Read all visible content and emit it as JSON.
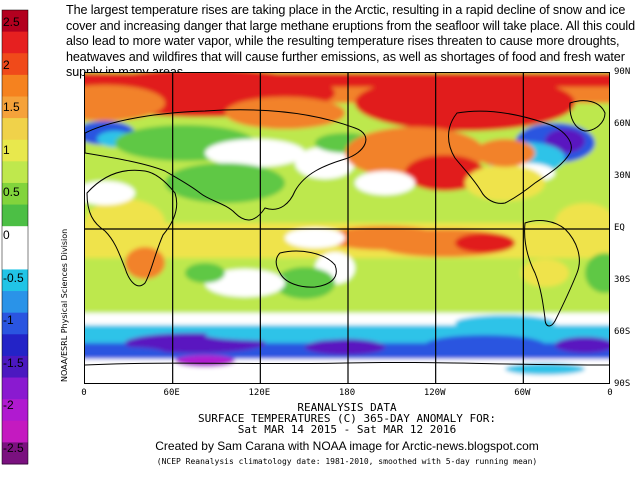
{
  "header": {
    "text": "The largest temperature rises are taking place in the Arctic, resulting in a rapid decline of snow and ice cover and increasing danger that large methane eruptions from the seafloor will take place. All this could also lead to more water vapor, while the resulting temperature rises threaten to cause more droughts, heatwaves and wildfires that will cause further emissions, as well as shortages of food and fresh water supply in many areas."
  },
  "colorbar": {
    "labels": [
      "2.5",
      "2",
      "1.5",
      "1",
      "0.5",
      "0",
      "-0.5",
      "-1",
      "-1.5",
      "-2",
      "-2.5"
    ],
    "colors": [
      "#b3001f",
      "#e62020",
      "#f04a1a",
      "#f5821f",
      "#f5a23a",
      "#f0d24a",
      "#e8e84d",
      "#bfe84d",
      "#82d43c",
      "#4cbf45",
      "#ffffff",
      "#ffffff",
      "#21c4e6",
      "#2a93e8",
      "#2a55e0",
      "#2323c7",
      "#4b18c0",
      "#8a1ad0",
      "#b01ad0",
      "#c41ac0",
      "#7a117f"
    ]
  },
  "map": {
    "lat_labels": [
      "90N",
      "60N",
      "30N",
      "EQ",
      "30S",
      "60S",
      "90S"
    ],
    "lon_labels": [
      "0",
      "60E",
      "120E",
      "180",
      "120W",
      "60W",
      "0"
    ],
    "side_credit": "NOAA/ESRL Physical Sciences Division",
    "color_scale": {
      "red": "#e11b1b",
      "orange": "#f2822a",
      "yellow": "#efe34b",
      "lime": "#bde84d",
      "green": "#5fc845",
      "white": "#ffffff",
      "cyan": "#2ec3e8",
      "blue": "#2a55e0",
      "violet": "#5a18c0",
      "magenta": "#b01ad0"
    }
  },
  "footer": {
    "line1": "REANALYSIS DATA",
    "line2": "SURFACE TEMPERATURES (C)   365-DAY ANOMALY FOR:",
    "line3": "Sat MAR 14 2015 - Sat MAR 12 2016",
    "credit": "Created by Sam Carana with NOAA image for Arctic-news.blogspot.com",
    "note": "(NCEP Reanalysis climatology date: 1981-2010, smoothed with 5-day running mean)"
  }
}
